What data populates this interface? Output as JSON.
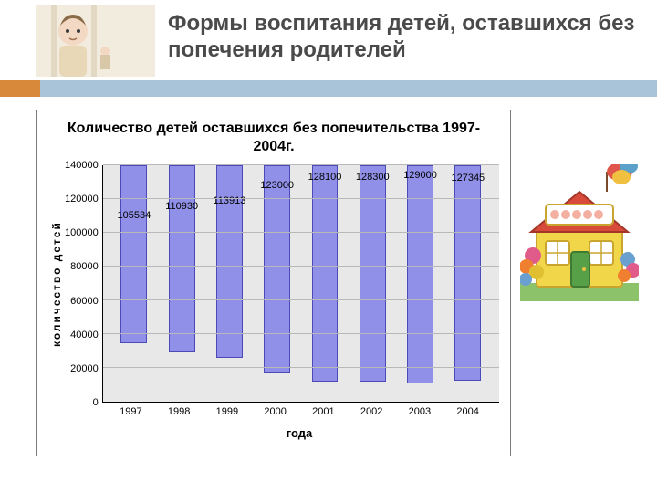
{
  "slide_title": "Формы воспитания детей, оставшихся без попечения родителей",
  "accent": {
    "left_color": "#d88a3a",
    "right_color": "#a9c3d8"
  },
  "chart": {
    "type": "bar",
    "title": "Количество детей оставшихся без попечительства 1997-2004г.",
    "title_fontsize": 16,
    "y_label": "количество детей",
    "x_label": "года",
    "label_fontsize": 13,
    "tick_fontsize": 11,
    "categories": [
      "1997",
      "1998",
      "1999",
      "2000",
      "2001",
      "2002",
      "2003",
      "2004"
    ],
    "values": [
      105534,
      110930,
      113913,
      123000,
      128100,
      128300,
      129000,
      127345
    ],
    "value_labels": [
      "105534",
      "110930",
      "113913",
      "123000",
      "128100",
      "128300",
      "129000",
      "127345"
    ],
    "ylim": [
      0,
      140000
    ],
    "ytick_step": 20000,
    "yticks": [
      "0",
      "20000",
      "40000",
      "60000",
      "80000",
      "100000",
      "120000",
      "140000"
    ],
    "bar_color": "#9090e8",
    "bar_border": "#4a4ab8",
    "plot_bg": "#e8e8e8",
    "grid_color": "#b8b8b8",
    "frame_border": "#7a7a7a",
    "bar_width": 0.55
  }
}
